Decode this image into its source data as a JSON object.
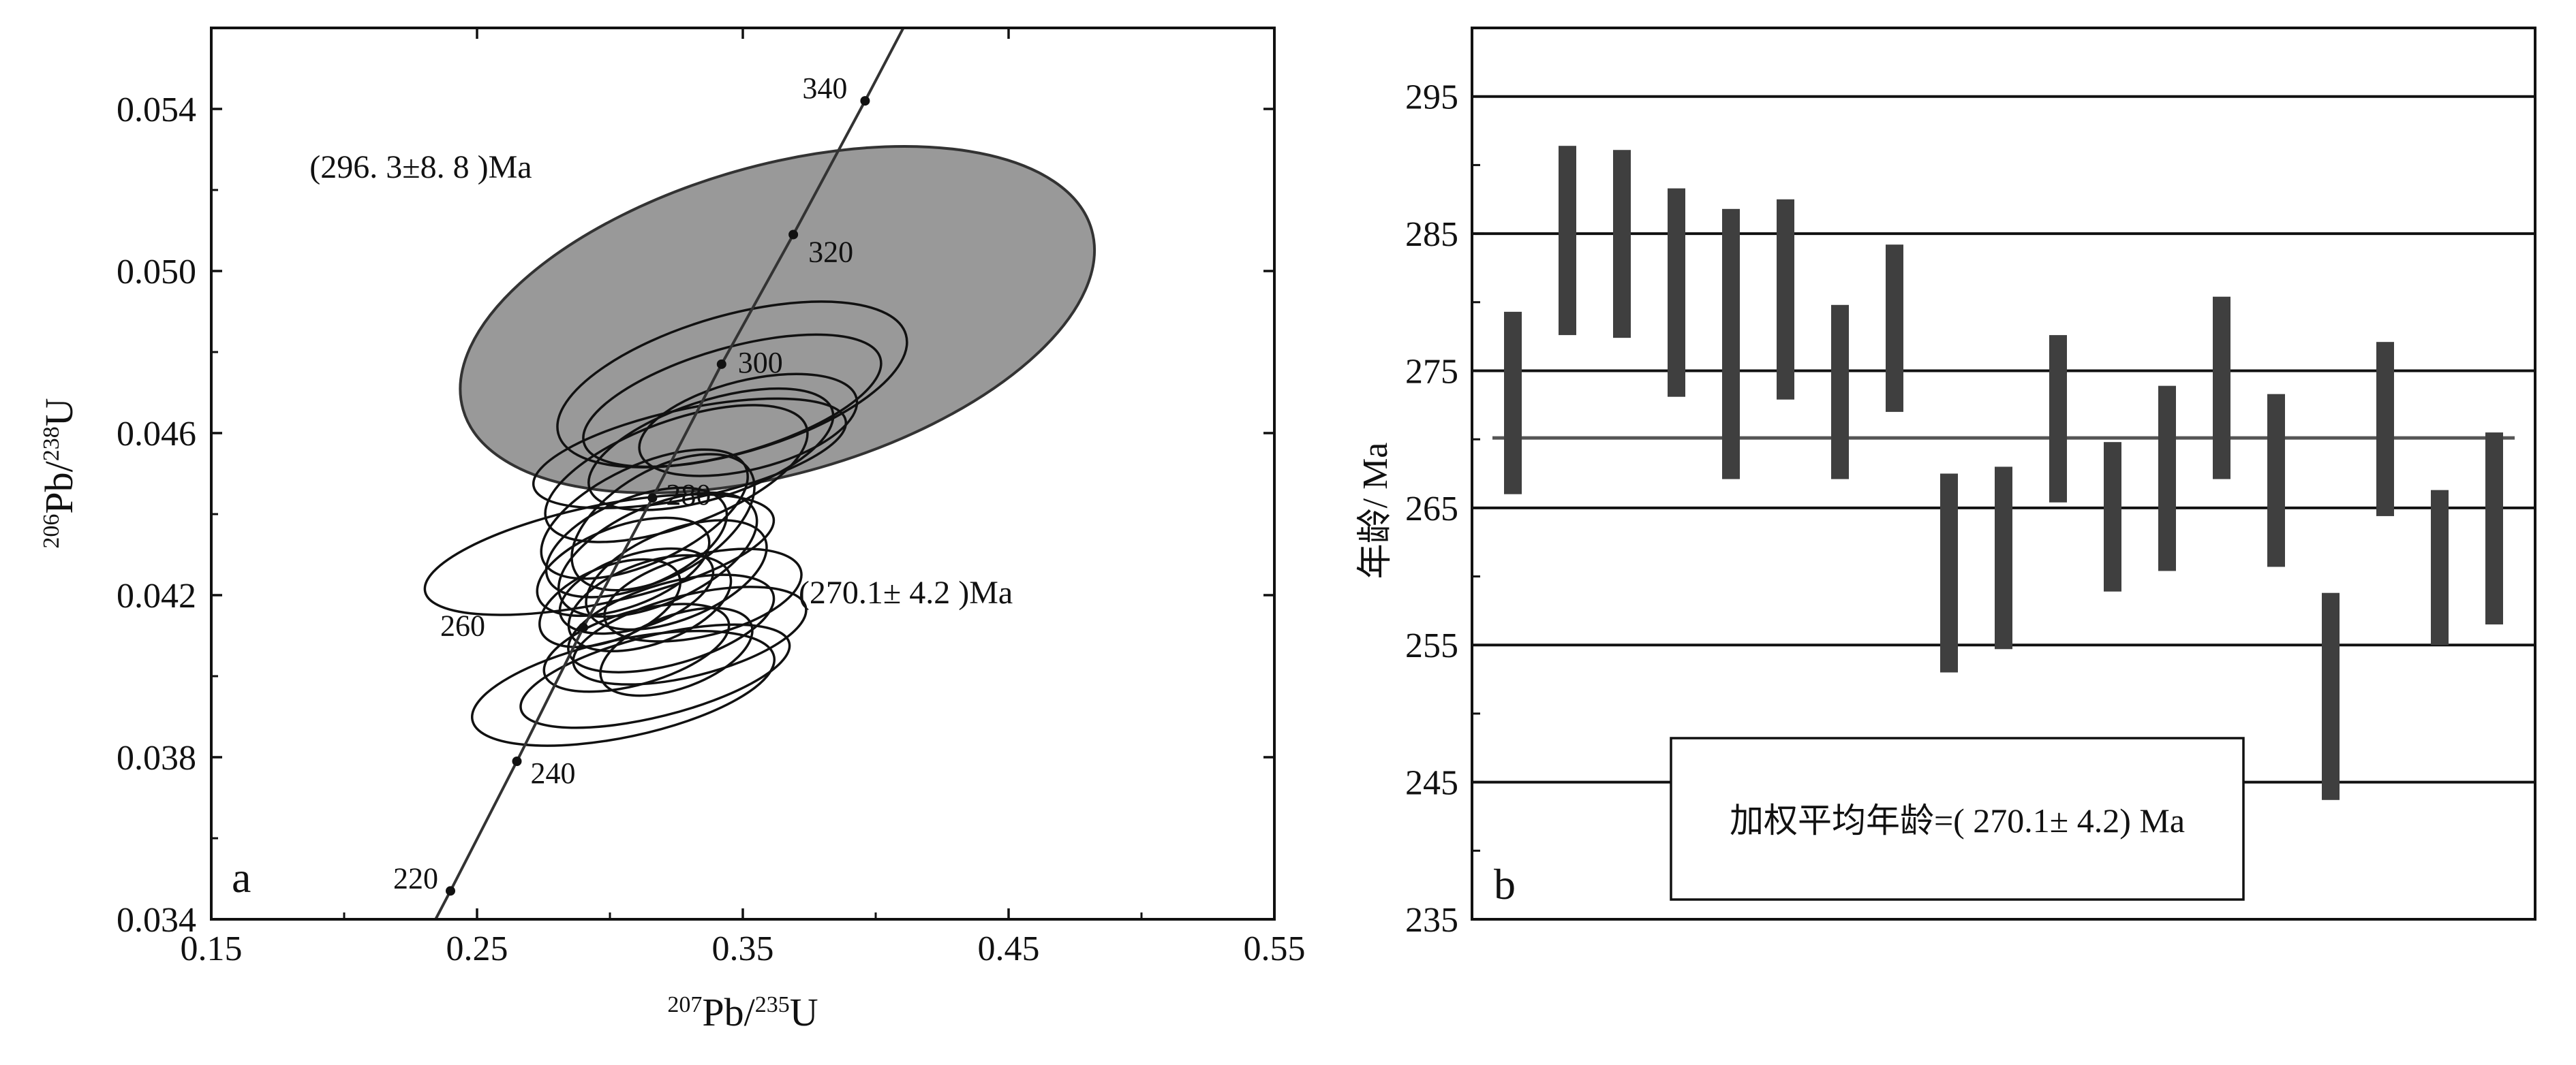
{
  "chart_data": [
    {
      "panel": "a",
      "type": "scatter",
      "subtype": "concordia",
      "xlabel": {
        "pre": "207",
        "main": "Pb/",
        "sup2": "235",
        "post": "U"
      },
      "ylabel": {
        "pre": "206",
        "main": "Pb/",
        "sup2": "238",
        "post": "U"
      },
      "xlim": [
        0.15,
        0.55
      ],
      "ylim": [
        0.034,
        0.056
      ],
      "xticks": [
        0.15,
        0.25,
        0.35,
        0.45,
        0.55
      ],
      "xtick_labels": [
        "0.15",
        "0.25",
        "0.35",
        "0.45",
        "0.55"
      ],
      "yticks": [
        0.034,
        0.038,
        0.042,
        0.046,
        0.05,
        0.054
      ],
      "ytick_labels": [
        "0.034",
        "0.038",
        "0.042",
        "0.046",
        "0.050",
        "0.054"
      ],
      "concordia_ages": [
        {
          "age": "220",
          "x": 0.24,
          "y": 0.0347
        },
        {
          "age": "240",
          "x": 0.265,
          "y": 0.0379
        },
        {
          "age": "260",
          "x": 0.29,
          "y": 0.0412
        },
        {
          "age": "280",
          "x": 0.316,
          "y": 0.0444
        },
        {
          "age": "300",
          "x": 0.342,
          "y": 0.0477
        },
        {
          "age": "320",
          "x": 0.369,
          "y": 0.0509
        },
        {
          "age": "340",
          "x": 0.396,
          "y": 0.0542
        }
      ],
      "filled_ellipse": {
        "cx": 0.363,
        "cy": 0.0488,
        "rx": 0.123,
        "ry": 0.0038,
        "rot": -16
      },
      "ellipses": [
        {
          "cx": 0.346,
          "cy": 0.0472,
          "rx": 0.068,
          "ry": 0.0017,
          "rot": -16
        },
        {
          "cx": 0.346,
          "cy": 0.0468,
          "rx": 0.058,
          "ry": 0.0013,
          "rot": -16
        },
        {
          "cx": 0.352,
          "cy": 0.0462,
          "rx": 0.042,
          "ry": 0.0011,
          "rot": -14
        },
        {
          "cx": 0.338,
          "cy": 0.0456,
          "rx": 0.048,
          "ry": 0.0012,
          "rot": -18
        },
        {
          "cx": 0.325,
          "cy": 0.045,
          "rx": 0.052,
          "ry": 0.0013,
          "rot": -20
        },
        {
          "cx": 0.33,
          "cy": 0.0455,
          "rx": 0.06,
          "ry": 0.0011,
          "rot": -12
        },
        {
          "cx": 0.296,
          "cy": 0.043,
          "rx": 0.067,
          "ry": 0.0012,
          "rot": -12
        },
        {
          "cx": 0.313,
          "cy": 0.044,
          "rx": 0.042,
          "ry": 0.0012,
          "rot": -25
        },
        {
          "cx": 0.32,
          "cy": 0.0438,
          "rx": 0.038,
          "ry": 0.0013,
          "rot": -30
        },
        {
          "cx": 0.31,
          "cy": 0.0433,
          "rx": 0.036,
          "ry": 0.0011,
          "rot": -22
        },
        {
          "cx": 0.318,
          "cy": 0.043,
          "rx": 0.04,
          "ry": 0.0012,
          "rot": -24
        },
        {
          "cx": 0.305,
          "cy": 0.0427,
          "rx": 0.034,
          "ry": 0.001,
          "rot": -20
        },
        {
          "cx": 0.325,
          "cy": 0.0425,
          "rx": 0.036,
          "ry": 0.0011,
          "rot": -22
        },
        {
          "cx": 0.31,
          "cy": 0.0421,
          "rx": 0.03,
          "ry": 0.0009,
          "rot": -18
        },
        {
          "cx": 0.3,
          "cy": 0.0418,
          "rx": 0.028,
          "ry": 0.0009,
          "rot": -22
        },
        {
          "cx": 0.315,
          "cy": 0.0418,
          "rx": 0.032,
          "ry": 0.001,
          "rot": -20
        },
        {
          "cx": 0.335,
          "cy": 0.042,
          "rx": 0.038,
          "ry": 0.001,
          "rot": -14
        },
        {
          "cx": 0.323,
          "cy": 0.0413,
          "rx": 0.04,
          "ry": 0.001,
          "rot": -16
        },
        {
          "cx": 0.33,
          "cy": 0.041,
          "rx": 0.045,
          "ry": 0.001,
          "rot": -14
        },
        {
          "cx": 0.31,
          "cy": 0.0407,
          "rx": 0.036,
          "ry": 0.0009,
          "rot": -16
        },
        {
          "cx": 0.317,
          "cy": 0.04,
          "rx": 0.052,
          "ry": 0.001,
          "rot": -14
        },
        {
          "cx": 0.325,
          "cy": 0.0406,
          "rx": 0.03,
          "ry": 0.0009,
          "rot": -20
        },
        {
          "cx": 0.305,
          "cy": 0.0397,
          "rx": 0.058,
          "ry": 0.0012,
          "rot": -12
        }
      ],
      "annotations": [
        {
          "text": "(296. 3±8. 8 )Ma",
          "x": 0.187,
          "y": 0.0523
        },
        {
          "text": "(270.1± 4.2 )Ma",
          "x": 0.371,
          "y": 0.0418
        }
      ],
      "panel_label": "a"
    },
    {
      "panel": "b",
      "type": "bar",
      "subtype": "weighted-mean-error-bars",
      "ylabel": "年龄/ Ma",
      "ylim": [
        235,
        300
      ],
      "yticks": [
        235,
        245,
        255,
        265,
        275,
        285,
        295
      ],
      "ytick_labels": [
        "235",
        "245",
        "255",
        "265",
        "275",
        "285",
        "295"
      ],
      "hgrid": [
        245,
        255,
        265,
        275,
        285,
        295
      ],
      "mean": 270.1,
      "bars": [
        [
          266.0,
          279.3
        ],
        [
          277.6,
          291.4
        ],
        [
          277.4,
          291.1
        ],
        [
          273.1,
          288.3
        ],
        [
          267.1,
          286.8
        ],
        [
          272.9,
          287.5
        ],
        [
          267.1,
          279.8
        ],
        [
          272.0,
          284.2
        ],
        [
          253.0,
          267.5
        ],
        [
          254.7,
          268.0
        ],
        [
          265.4,
          277.6
        ],
        [
          258.9,
          269.8
        ],
        [
          260.4,
          273.9
        ],
        [
          267.1,
          280.4
        ],
        [
          260.7,
          273.3
        ],
        [
          243.7,
          258.8
        ],
        [
          264.4,
          277.1
        ],
        [
          255.0,
          266.3
        ],
        [
          256.5,
          270.5
        ]
      ],
      "bar_color": "#3f3f3f",
      "legend_text": "加权平均年龄=( 270.1± 4.2) Ma",
      "panel_label": "b"
    }
  ]
}
